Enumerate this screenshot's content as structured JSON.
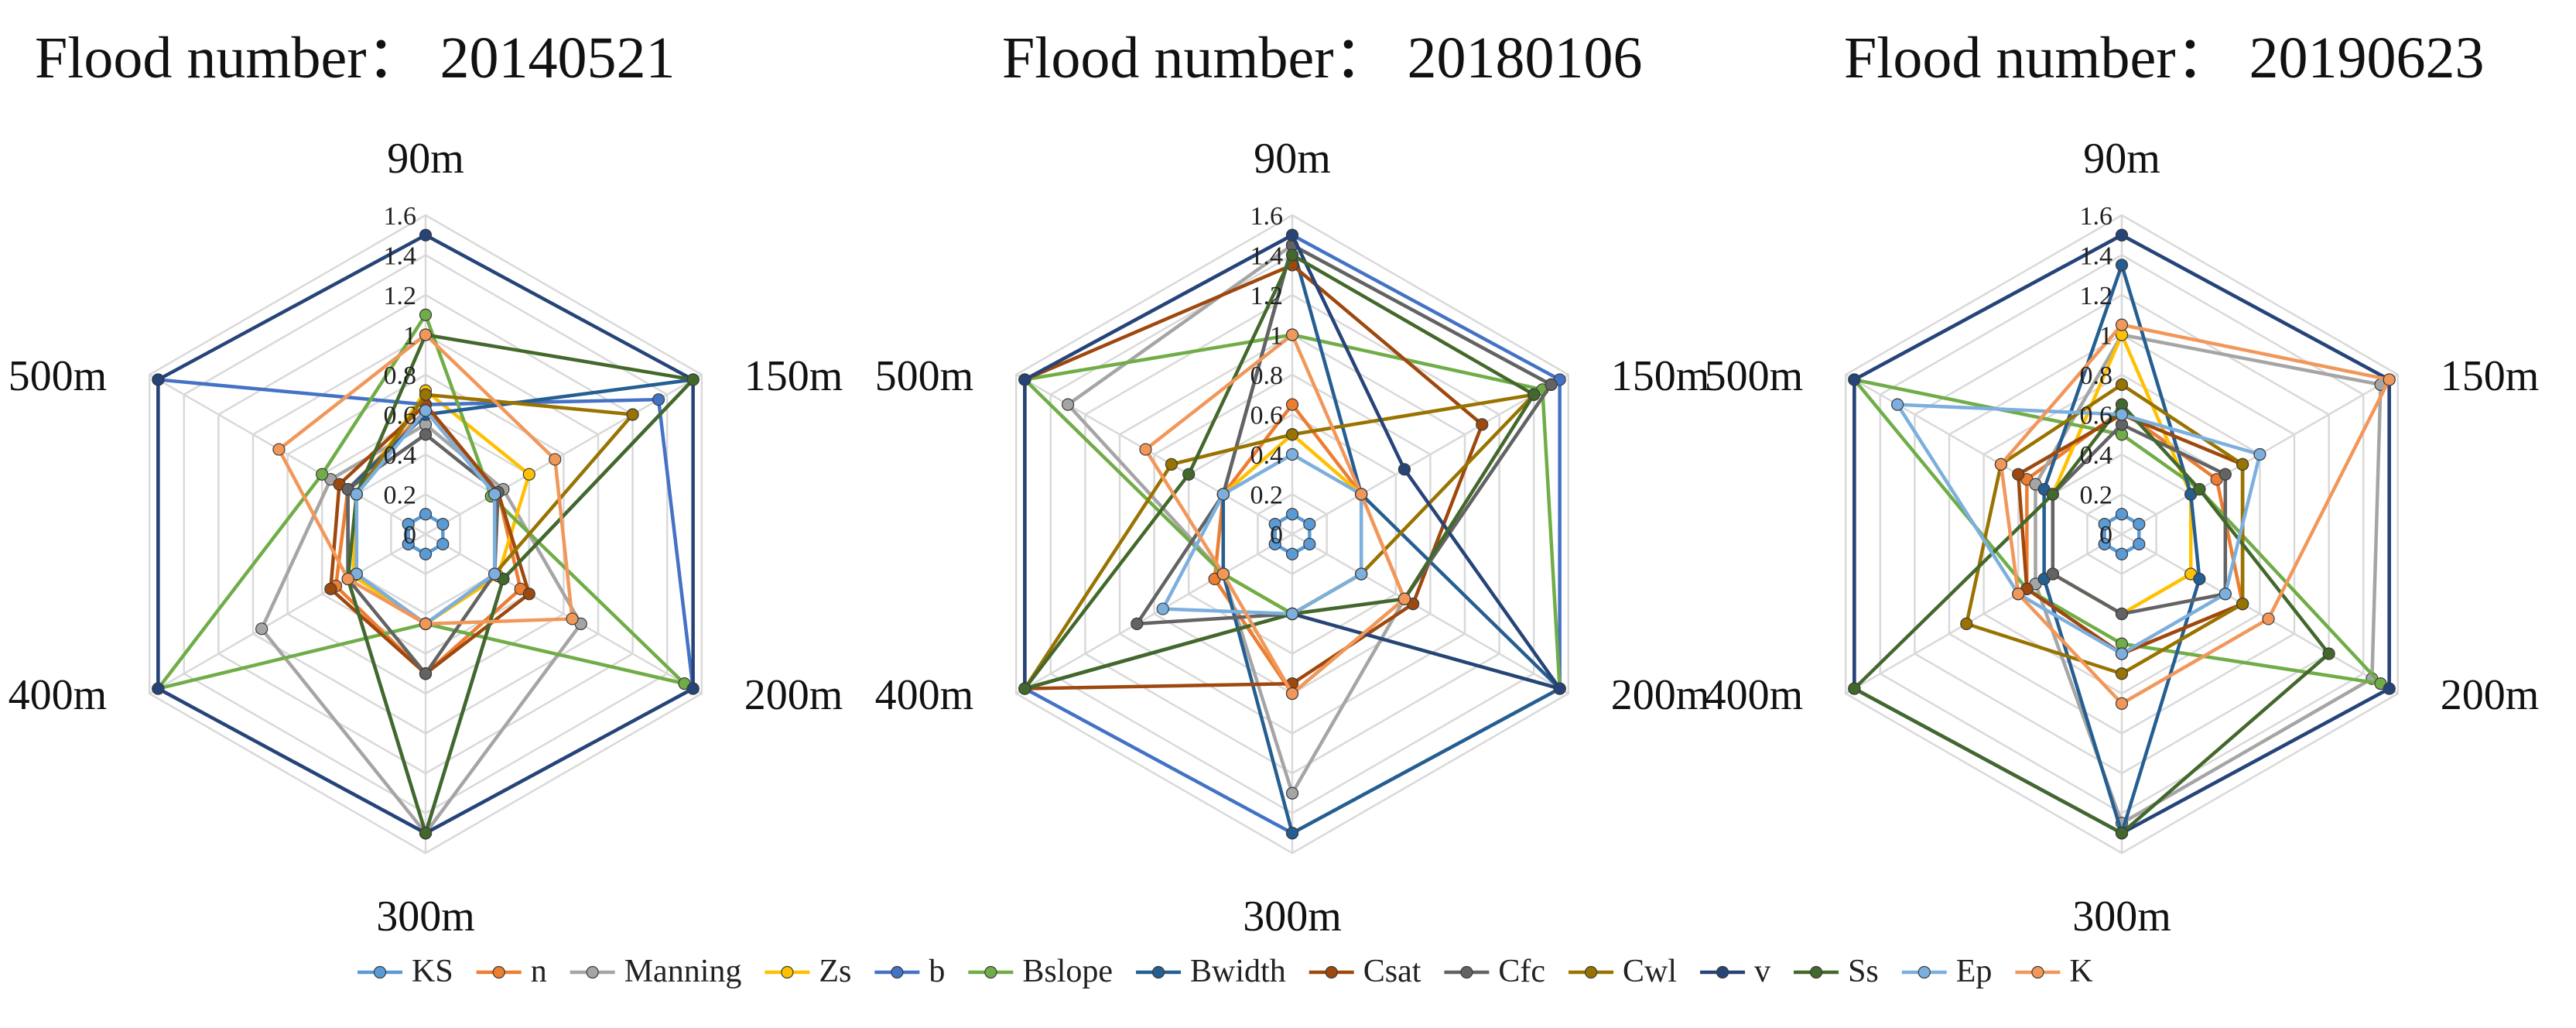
{
  "chart_data": [
    {
      "type": "radar",
      "title": "Flood number： 20140521",
      "axes": [
        "90m",
        "150m",
        "200m",
        "300m",
        "400m",
        "500m"
      ],
      "ticks": [
        "0",
        "0.2",
        "0.4",
        "0.6",
        "0.8",
        "1",
        "1.2",
        "1.4",
        "1.6"
      ],
      "rmin": 0,
      "rmax": 1.6,
      "series": [
        {
          "name": "KS",
          "values": [
            0.1,
            0.1,
            0.1,
            0.1,
            0.1,
            0.1
          ]
        },
        {
          "name": "n",
          "values": [
            0.62,
            0.42,
            0.55,
            0.7,
            0.52,
            0.45
          ]
        },
        {
          "name": "Manning",
          "values": [
            0.55,
            0.45,
            0.9,
            1.5,
            0.95,
            0.55
          ]
        },
        {
          "name": "Zs",
          "values": [
            0.72,
            0.6,
            0.42,
            0.45,
            0.42,
            0.4
          ]
        },
        {
          "name": "b",
          "values": [
            0.65,
            1.35,
            1.55,
            1.5,
            1.55,
            1.55
          ]
        },
        {
          "name": "Bslope",
          "values": [
            1.1,
            0.38,
            1.5,
            0.45,
            1.55,
            0.6
          ]
        },
        {
          "name": "Bwidth",
          "values": [
            0.6,
            1.55,
            0.45,
            1.5,
            0.45,
            0.45
          ]
        },
        {
          "name": "Csat",
          "values": [
            0.65,
            0.42,
            0.6,
            0.7,
            0.55,
            0.5
          ]
        },
        {
          "name": "Cfc",
          "values": [
            0.5,
            0.42,
            0.4,
            0.7,
            0.45,
            0.45
          ]
        },
        {
          "name": "Cwl",
          "values": [
            0.7,
            1.2,
            0.4,
            0.45,
            0.4,
            0.4
          ]
        },
        {
          "name": "v",
          "values": [
            1.5,
            1.55,
            1.55,
            1.5,
            1.55,
            1.55
          ]
        },
        {
          "name": "Ss",
          "values": [
            1.0,
            1.55,
            0.45,
            1.5,
            0.45,
            0.4
          ]
        },
        {
          "name": "Ep",
          "values": [
            0.62,
            0.4,
            0.4,
            0.45,
            0.4,
            0.4
          ]
        },
        {
          "name": "K",
          "values": [
            1.0,
            0.75,
            0.85,
            0.45,
            0.45,
            0.85
          ]
        }
      ]
    },
    {
      "type": "radar",
      "title": "Flood number： 20180106",
      "axes": [
        "90m",
        "150m",
        "200m",
        "300m",
        "400m",
        "500m"
      ],
      "ticks": [
        "0",
        "0.2",
        "0.4",
        "0.6",
        "0.8",
        "1",
        "1.2",
        "1.4",
        "1.6"
      ],
      "rmin": 0,
      "rmax": 1.6,
      "series": [
        {
          "name": "KS",
          "values": [
            0.1,
            0.1,
            0.1,
            0.1,
            0.1,
            0.1
          ]
        },
        {
          "name": "n",
          "values": [
            0.65,
            0.4,
            0.65,
            0.8,
            0.45,
            0.4
          ]
        },
        {
          "name": "Manning",
          "values": [
            1.45,
            1.5,
            0.65,
            1.3,
            0.4,
            1.3
          ]
        },
        {
          "name": "Zs",
          "values": [
            0.5,
            0.4,
            0.4,
            0.4,
            0.4,
            0.4
          ]
        },
        {
          "name": "b",
          "values": [
            1.5,
            1.55,
            1.55,
            1.5,
            1.55,
            1.55
          ]
        },
        {
          "name": "Bslope",
          "values": [
            1.0,
            1.45,
            1.55,
            0.4,
            0.4,
            1.55
          ]
        },
        {
          "name": "Bwidth",
          "values": [
            1.45,
            0.4,
            1.55,
            1.5,
            0.4,
            0.4
          ]
        },
        {
          "name": "Csat",
          "values": [
            1.35,
            1.1,
            0.7,
            0.75,
            1.55,
            1.55
          ]
        },
        {
          "name": "Cfc",
          "values": [
            1.45,
            1.5,
            0.65,
            0.4,
            0.9,
            0.4
          ]
        },
        {
          "name": "Cwl",
          "values": [
            0.5,
            1.4,
            0.4,
            0.4,
            1.55,
            0.7
          ]
        },
        {
          "name": "v",
          "values": [
            1.5,
            0.65,
            1.55,
            0.4,
            1.55,
            1.55
          ]
        },
        {
          "name": "Ss",
          "values": [
            1.4,
            1.4,
            0.65,
            0.4,
            1.55,
            0.6
          ]
        },
        {
          "name": "Ep",
          "values": [
            0.4,
            0.4,
            0.4,
            0.4,
            0.75,
            0.4
          ]
        },
        {
          "name": "K",
          "values": [
            1.0,
            0.4,
            0.65,
            0.8,
            0.4,
            0.85
          ]
        }
      ]
    },
    {
      "type": "radar",
      "title": "Flood number： 20190623",
      "axes": [
        "90m",
        "150m",
        "200m",
        "300m",
        "400m",
        "500m"
      ],
      "ticks": [
        "0",
        "0.2",
        "0.4",
        "0.6",
        "0.8",
        "1",
        "1.2",
        "1.4",
        "1.6"
      ],
      "rmin": 0,
      "rmax": 1.6,
      "series": [
        {
          "name": "KS",
          "values": [
            0.1,
            0.1,
            0.1,
            0.1,
            0.1,
            0.1
          ]
        },
        {
          "name": "n",
          "values": [
            0.62,
            0.55,
            0.7,
            0.6,
            0.55,
            0.55
          ]
        },
        {
          "name": "Manning",
          "values": [
            1.0,
            1.5,
            1.45,
            1.45,
            0.5,
            0.5
          ]
        },
        {
          "name": "Zs",
          "values": [
            1.0,
            0.4,
            0.4,
            0.4,
            0.4,
            0.4
          ]
        },
        {
          "name": "b",
          "values": [
            1.5,
            1.55,
            1.55,
            1.5,
            1.55,
            1.55
          ]
        },
        {
          "name": "Bslope",
          "values": [
            0.5,
            0.45,
            1.5,
            0.55,
            0.55,
            1.55
          ]
        },
        {
          "name": "Bwidth",
          "values": [
            1.35,
            0.4,
            0.45,
            1.5,
            0.45,
            0.45
          ]
        },
        {
          "name": "Csat",
          "values": [
            0.6,
            0.7,
            0.7,
            0.6,
            0.55,
            0.6
          ]
        },
        {
          "name": "Cfc",
          "values": [
            0.55,
            0.6,
            0.6,
            0.4,
            0.4,
            0.4
          ]
        },
        {
          "name": "Cwl",
          "values": [
            0.75,
            0.7,
            0.7,
            0.7,
            0.9,
            0.7
          ]
        },
        {
          "name": "v",
          "values": [
            1.5,
            1.55,
            1.55,
            1.5,
            1.55,
            1.55
          ]
        },
        {
          "name": "Ss",
          "values": [
            0.65,
            0.45,
            1.2,
            1.5,
            1.55,
            0.4
          ]
        },
        {
          "name": "Ep",
          "values": [
            0.6,
            0.8,
            0.6,
            0.6,
            0.6,
            1.3
          ]
        },
        {
          "name": "K",
          "values": [
            1.05,
            1.55,
            0.85,
            0.85,
            0.6,
            0.7
          ]
        }
      ]
    }
  ],
  "series_colors": {
    "KS": "#5B9BD5",
    "n": "#ED7D31",
    "Manning": "#A5A5A5",
    "Zs": "#FFC000",
    "b": "#4472C4",
    "Bslope": "#70AD47",
    "Bwidth": "#255E91",
    "Csat": "#9E480E",
    "Cfc": "#636363",
    "Cwl": "#997300",
    "v": "#264478",
    "Ss": "#43682B",
    "Ep": "#7CAFDD",
    "K": "#F1975A"
  },
  "legend": [
    "KS",
    "n",
    "Manning",
    "Zs",
    "b",
    "Bslope",
    "Bwidth",
    "Csat",
    "Cfc",
    "Cwl",
    "v",
    "Ss",
    "Ep",
    "K"
  ]
}
